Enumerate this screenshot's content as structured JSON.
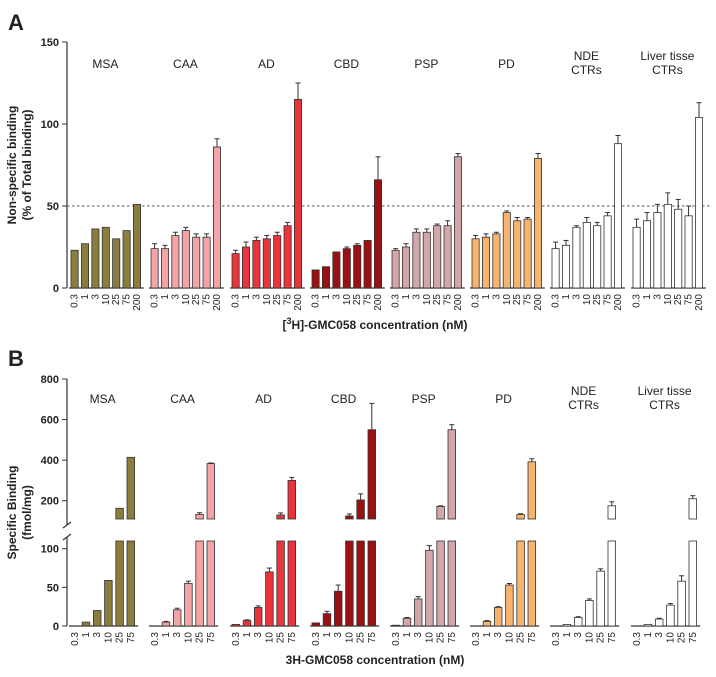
{
  "groups": [
    {
      "id": "MSA",
      "label": [
        "MSA"
      ],
      "color": "#8b7d3d",
      "a_x": [
        "0.3",
        "1",
        "3",
        "10",
        "25",
        "75",
        "200"
      ],
      "b_x": [
        "0.3",
        "1",
        "3",
        "10",
        "25",
        "75"
      ]
    },
    {
      "id": "CAA",
      "label": [
        "CAA"
      ],
      "color": "#f4a3a6",
      "a_x": [
        "0.3",
        "1",
        "3",
        "10",
        "25",
        "75",
        "200"
      ],
      "b_x": [
        "0.3",
        "1",
        "3",
        "10",
        "25",
        "75"
      ]
    },
    {
      "id": "AD",
      "label": [
        "AD"
      ],
      "color": "#e8343a",
      "a_x": [
        "0.3",
        "1",
        "3",
        "10",
        "25",
        "75",
        "200"
      ],
      "b_x": [
        "0.3",
        "1",
        "3",
        "10",
        "25",
        "75"
      ]
    },
    {
      "id": "CBD",
      "label": [
        "CBD"
      ],
      "color": "#9b1012",
      "a_x": [
        "0.3",
        "1",
        "3",
        "10",
        "25",
        "75",
        "200"
      ],
      "b_x": [
        "0.3",
        "1",
        "3",
        "10",
        "25",
        "75"
      ]
    },
    {
      "id": "PSP",
      "label": [
        "PSP"
      ],
      "color": "#d3a6a8",
      "a_x": [
        "0.3",
        "1",
        "3",
        "10",
        "25",
        "75",
        "200"
      ],
      "b_x": [
        "0.3",
        "1",
        "3",
        "10",
        "25",
        "75"
      ]
    },
    {
      "id": "PD",
      "label": [
        "PD"
      ],
      "color": "#f6b46f",
      "a_x": [
        "0.3",
        "1",
        "3",
        "10",
        "25",
        "75",
        "200"
      ],
      "b_x": [
        "0.3",
        "1",
        "3",
        "10",
        "25",
        "75"
      ]
    },
    {
      "id": "NDE",
      "label": [
        "NDE",
        "CTRs"
      ],
      "color": "#ffffff",
      "a_x": [
        "0.3",
        "1",
        "3",
        "10",
        "25",
        "75",
        "200"
      ],
      "b_x": [
        "0.3",
        "1",
        "3",
        "10",
        "25",
        "75"
      ]
    },
    {
      "id": "Liver",
      "label": [
        "Liver tisse",
        "CTRs"
      ],
      "color": "#ffffff",
      "a_x": [
        "0.3",
        "1",
        "3",
        "10",
        "25",
        "75",
        "200"
      ],
      "b_x": [
        "0.3",
        "1",
        "3",
        "10",
        "25",
        "75"
      ]
    }
  ],
  "chart_data": [
    {
      "panel": "A",
      "type": "bar",
      "ylabel": [
        "Non-specific binding",
        "(% of Total binding)"
      ],
      "xlabel": {
        "prefix": "[",
        "sup": "3",
        "suffix": "H]-GMC058 concentration (nM)"
      },
      "ylim": [
        0,
        150
      ],
      "yticks": [
        "0",
        "50",
        "100",
        "150"
      ],
      "reference_line": 50,
      "series": [
        {
          "group": "MSA",
          "values": [
            23,
            27,
            36,
            37,
            30,
            35,
            51
          ],
          "errors": [
            0,
            0,
            0,
            0,
            0,
            0,
            0
          ]
        },
        {
          "group": "CAA",
          "values": [
            24,
            24,
            32,
            35,
            31,
            31,
            86
          ],
          "errors": [
            3,
            2,
            2,
            2,
            2,
            2,
            5
          ]
        },
        {
          "group": "AD",
          "values": [
            21,
            25,
            29,
            30,
            32,
            38,
            115
          ],
          "errors": [
            2,
            3,
            2,
            2,
            2,
            2,
            10
          ]
        },
        {
          "group": "CBD",
          "values": [
            11,
            13,
            22,
            24,
            26,
            29,
            66
          ],
          "errors": [
            0,
            0,
            0,
            1,
            1,
            0,
            14
          ]
        },
        {
          "group": "PSP",
          "values": [
            23,
            25,
            34,
            34,
            38,
            38,
            80
          ],
          "errors": [
            1,
            2,
            2,
            2,
            1,
            3,
            2
          ]
        },
        {
          "group": "PD",
          "values": [
            30,
            31,
            33,
            46,
            41,
            42,
            79
          ],
          "errors": [
            2,
            2,
            1,
            1,
            2,
            1,
            3
          ]
        },
        {
          "group": "NDE",
          "values": [
            24,
            26,
            37,
            40,
            38,
            44,
            88
          ],
          "errors": [
            4,
            3,
            1,
            3,
            2,
            2,
            5
          ]
        },
        {
          "group": "Liver",
          "values": [
            37,
            41,
            46,
            51,
            48,
            44,
            104
          ],
          "errors": [
            5,
            5,
            5,
            7,
            6,
            6,
            9
          ]
        }
      ]
    },
    {
      "panel": "B",
      "type": "bar",
      "ylabel": [
        "Specific Binding",
        "(fmol/mg)"
      ],
      "xlabel": {
        "prefix": "",
        "sup": "",
        "suffix": "3H-GMC058 concentration (nM)"
      },
      "ylim": [
        0,
        800
      ],
      "broken_axis": {
        "lower": [
          0,
          110
        ],
        "upper": [
          110,
          800
        ]
      },
      "yticks_lower": [
        "0",
        "50",
        "100"
      ],
      "yticks_upper": [
        "200",
        "400",
        "600",
        "800"
      ],
      "series": [
        {
          "group": "MSA",
          "values": [
            0,
            5,
            20,
            59,
            163,
            414
          ],
          "errors": [
            0,
            0,
            0,
            0,
            0,
            0
          ]
        },
        {
          "group": "CAA",
          "values": [
            0,
            5,
            21,
            55,
            133,
            383
          ],
          "errors": [
            0,
            1,
            2,
            3,
            8,
            3
          ]
        },
        {
          "group": "AD",
          "values": [
            2,
            7,
            24,
            70,
            130,
            300
          ],
          "errors": [
            0,
            1,
            2,
            5,
            10,
            15
          ]
        },
        {
          "group": "CBD",
          "values": [
            4,
            16,
            45,
            125,
            204,
            550
          ],
          "errors": [
            0,
            3,
            8,
            10,
            30,
            130
          ]
        },
        {
          "group": "PSP",
          "values": [
            1,
            10,
            35,
            98,
            172,
            550
          ],
          "errors": [
            0,
            1,
            3,
            6,
            3,
            25
          ]
        },
        {
          "group": "PD",
          "values": [
            0,
            6,
            24,
            53,
            132,
            392
          ],
          "errors": [
            0,
            1,
            1,
            2,
            4,
            15
          ]
        },
        {
          "group": "NDE",
          "values": [
            0,
            2,
            11,
            33,
            71,
            175
          ],
          "errors": [
            0,
            0,
            1,
            2,
            3,
            20
          ]
        },
        {
          "group": "Liver",
          "values": [
            0,
            2,
            9,
            27,
            58,
            210
          ],
          "errors": [
            0,
            0,
            1,
            2,
            7,
            15
          ]
        }
      ]
    }
  ]
}
